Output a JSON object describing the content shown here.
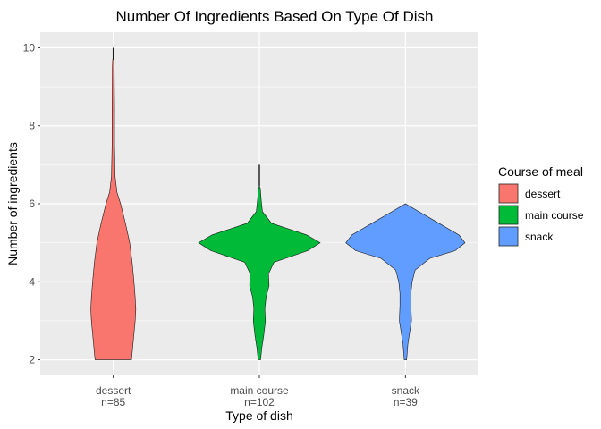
{
  "chart_data": {
    "type": "violin",
    "title": "Number Of Ingredients Based On Type Of Dish",
    "xlabel": "Type of dish",
    "ylabel": "Number of ingredients",
    "ylim": [
      1.6,
      10.4
    ],
    "yticks": [
      2,
      4,
      6,
      8,
      10
    ],
    "grid": true,
    "legend_position": "right",
    "legend_title": "Course of meal",
    "categories": [
      {
        "name": "dessert",
        "count_label": "n=85",
        "color": "#F8766D",
        "profile": [
          [
            2.0,
            0.3
          ],
          [
            2.5,
            0.33
          ],
          [
            3.0,
            0.36
          ],
          [
            3.3,
            0.37
          ],
          [
            3.6,
            0.36
          ],
          [
            4.0,
            0.34
          ],
          [
            4.5,
            0.31
          ],
          [
            5.0,
            0.27
          ],
          [
            5.5,
            0.2
          ],
          [
            6.0,
            0.12
          ],
          [
            6.3,
            0.06
          ],
          [
            6.7,
            0.03
          ],
          [
            7.5,
            0.02
          ],
          [
            8.5,
            0.02
          ],
          [
            9.5,
            0.015
          ],
          [
            9.7,
            0.01
          ]
        ],
        "line_ymax": 10
      },
      {
        "name": "main course",
        "count_label": "n=102",
        "color": "#00BA38",
        "profile": [
          [
            2.0,
            0.02
          ],
          [
            2.3,
            0.04
          ],
          [
            2.6,
            0.07
          ],
          [
            3.0,
            0.1
          ],
          [
            3.3,
            0.09
          ],
          [
            3.6,
            0.11
          ],
          [
            3.9,
            0.16
          ],
          [
            4.2,
            0.15
          ],
          [
            4.5,
            0.24
          ],
          [
            4.8,
            0.8
          ],
          [
            5.0,
            1.0
          ],
          [
            5.2,
            0.78
          ],
          [
            5.5,
            0.2
          ],
          [
            5.8,
            0.05
          ],
          [
            6.1,
            0.03
          ],
          [
            6.4,
            0.015
          ],
          [
            6.45,
            0.0
          ]
        ],
        "line_ymax": 7
      },
      {
        "name": "snack",
        "count_label": "n=39",
        "color": "#619CFF",
        "profile": [
          [
            2.0,
            0.02
          ],
          [
            2.4,
            0.04
          ],
          [
            2.8,
            0.08
          ],
          [
            3.0,
            0.1
          ],
          [
            3.4,
            0.09
          ],
          [
            3.7,
            0.09
          ],
          [
            4.0,
            0.11
          ],
          [
            4.3,
            0.16
          ],
          [
            4.6,
            0.4
          ],
          [
            4.8,
            0.82
          ],
          [
            5.0,
            0.98
          ],
          [
            5.2,
            0.88
          ],
          [
            5.5,
            0.55
          ],
          [
            5.8,
            0.22
          ],
          [
            6.0,
            0.0
          ]
        ]
      }
    ]
  }
}
